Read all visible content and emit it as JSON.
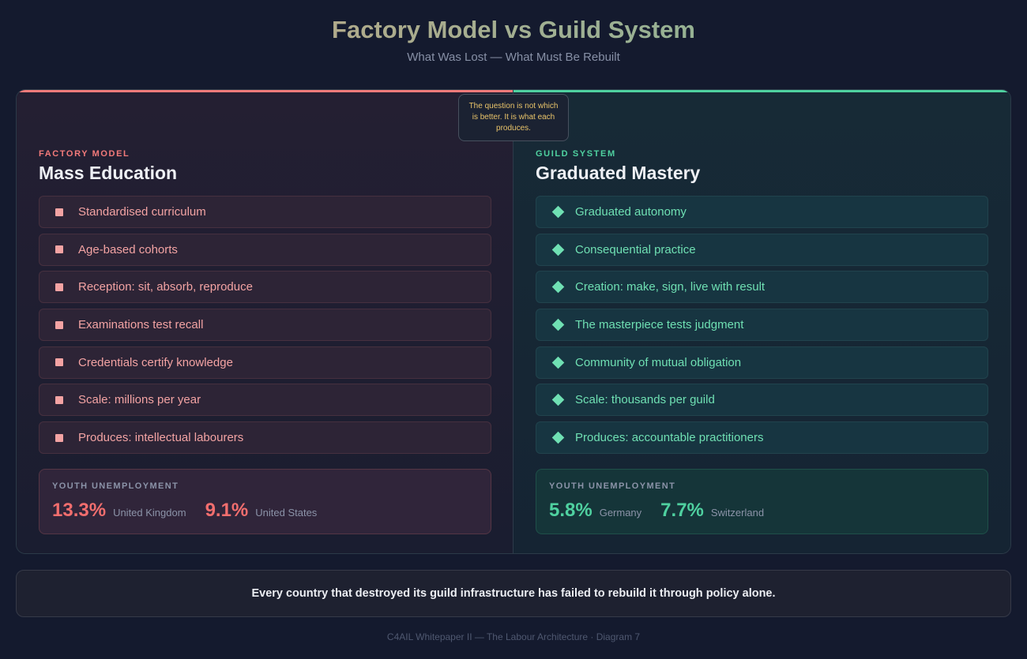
{
  "header": {
    "title": "Factory Model vs Guild System",
    "subtitle": "What Was Lost — What Must Be Rebuilt"
  },
  "callout": "The question is not which is better. It is what each produces.",
  "factory": {
    "kicker": "FACTORY MODEL",
    "heading": "Mass Education",
    "accent": "#f27a7a",
    "marker_icon": "square-icon",
    "items": [
      "Standardised curriculum",
      "Age-based cohorts",
      "Reception: sit, absorb, reproduce",
      "Examinations test recall",
      "Credentials certify knowledge",
      "Scale: millions per year",
      "Produces: intellectual labourers"
    ],
    "stats": {
      "label": "YOUTH UNEMPLOYMENT",
      "entries": [
        {
          "value": "13.3%",
          "country": "United Kingdom"
        },
        {
          "value": "9.1%",
          "country": "United States"
        }
      ]
    }
  },
  "guild": {
    "kicker": "GUILD SYSTEM",
    "heading": "Graduated Mastery",
    "accent": "#4fd1a0",
    "marker_icon": "diamond-icon",
    "items": [
      "Graduated autonomy",
      "Consequential practice",
      "Creation: make, sign, live with result",
      "The masterpiece tests judgment",
      "Community of mutual obligation",
      "Scale: thousands per guild",
      "Produces: accountable practitioners"
    ],
    "stats": {
      "label": "YOUTH UNEMPLOYMENT",
      "entries": [
        {
          "value": "5.8%",
          "country": "Germany"
        },
        {
          "value": "7.7%",
          "country": "Switzerland"
        }
      ]
    }
  },
  "conclusion": "Every country that destroyed its guild infrastructure has failed to rebuild it through policy alone.",
  "credit": "C4AIL Whitepaper II — The Labour Architecture · Diagram 7"
}
